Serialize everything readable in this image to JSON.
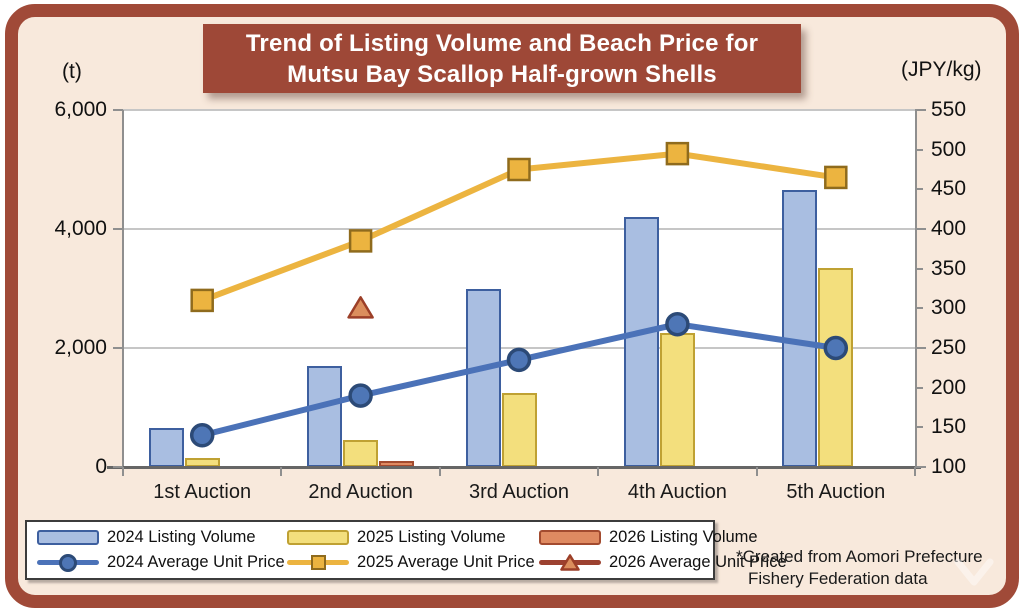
{
  "title": {
    "line1": "Trend of Listing Volume and Beach Price for",
    "line2": "Mutsu Bay Scallop Half-grown Shells"
  },
  "chart_data": {
    "type": "bar+line combo",
    "categories": [
      "1st Auction",
      "2nd Auction",
      "3rd Auction",
      "4th Auction",
      "5th Auction"
    ],
    "left_axis": {
      "unit": "(t)",
      "min": 0,
      "max": 6000,
      "ticks": [
        {
          "v": 6000,
          "label": "6,000"
        },
        {
          "v": 4000,
          "label": "4,000"
        },
        {
          "v": 2000,
          "label": "2,000"
        },
        {
          "v": 0,
          "label": "0"
        }
      ],
      "grid_values": [
        2000,
        4000,
        6000
      ]
    },
    "right_axis": {
      "unit": "(JPY/kg)",
      "min": 100,
      "max": 550,
      "ticks": [
        {
          "v": 550,
          "label": "550",
          "major": true
        },
        {
          "v": 500,
          "label": "500",
          "major": false
        },
        {
          "v": 450,
          "label": "450",
          "major": false
        },
        {
          "v": 400,
          "label": "400",
          "major": true
        },
        {
          "v": 350,
          "label": "350",
          "major": false
        },
        {
          "v": 300,
          "label": "300",
          "major": false
        },
        {
          "v": 250,
          "label": "250",
          "major": true
        },
        {
          "v": 200,
          "label": "200",
          "major": false
        },
        {
          "v": 150,
          "label": "150",
          "major": false
        },
        {
          "v": 100,
          "label": "100",
          "major": true
        }
      ]
    },
    "volume_series": [
      {
        "name": "2024 Listing Volume",
        "values": [
          650,
          1700,
          3000,
          4200,
          4650
        ],
        "fill": "#A9BEE1",
        "stroke": "#3D5F9F"
      },
      {
        "name": "2025 Listing Volume",
        "values": [
          150,
          450,
          1250,
          2250,
          3350
        ],
        "fill": "#F3DF7D",
        "stroke": "#BFA133"
      },
      {
        "name": "2026 Listing Volume",
        "values": [
          null,
          100,
          null,
          null,
          null
        ],
        "fill": "#DF8A61",
        "stroke": "#A34B2F"
      }
    ],
    "price_series": [
      {
        "name": "2024 Average Unit Price",
        "values": [
          140,
          190,
          235,
          280,
          250
        ],
        "marker": "circle",
        "line": "#4B72B8",
        "marker_fill": "#4E76B6",
        "marker_stroke": "#2C4A77"
      },
      {
        "name": "2025 Average Unit Price",
        "values": [
          310,
          385,
          475,
          495,
          465
        ],
        "marker": "square",
        "line": "#ECB440",
        "marker_fill": "#ECB440",
        "marker_stroke": "#8F6B1D"
      },
      {
        "name": "2026 Average Unit Price",
        "values": [
          null,
          300,
          null,
          null,
          null
        ],
        "marker": "triangle",
        "line": "#9C4130",
        "marker_fill": "#DB8E5D",
        "marker_stroke": "#9C3F28"
      }
    ],
    "grid": "horizontal gridlines every 2,000 t (= 150 JPY/kg)",
    "legend_position": "bottom-left"
  },
  "legend": {
    "items": [
      {
        "label": "2024 Listing Volume"
      },
      {
        "label": "2025 Listing Volume"
      },
      {
        "label": "2026 Listing Volume"
      },
      {
        "label": "2024 Average Unit Price"
      },
      {
        "label": "2025 Average Unit Price"
      },
      {
        "label": "2026 Average Unit Price"
      }
    ]
  },
  "note": {
    "line1": "*Created from Aomori Prefecture",
    "line2": "Fishery Federation data"
  },
  "colors": {
    "frame": "#A04A38",
    "background": "#F8E9DC",
    "title_bg": "#9E4837",
    "title_text": "#FFFFFF",
    "gridline": "#C6C6C6",
    "axis": "#8F8F8F"
  }
}
